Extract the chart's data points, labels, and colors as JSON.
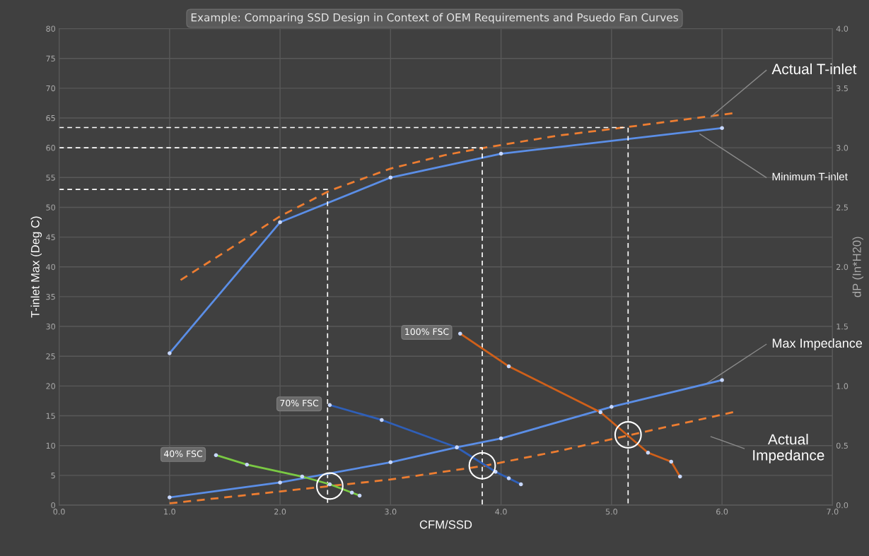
{
  "chart_data": {
    "type": "line",
    "title": "Example: Comparing SSD Design in Context of OEM Requirements and Psuedo Fan Curves",
    "xlabel": "CFM/SSD",
    "ylabel": "T-inlet Max (Deg C)",
    "y2label": "dP (In*H20)",
    "xlim": [
      0,
      7
    ],
    "xticks": [
      {
        "value": 0,
        "label": "0.0"
      },
      {
        "value": 1,
        "label": "1.0"
      },
      {
        "value": 2,
        "label": "2.0"
      },
      {
        "value": 3,
        "label": "3.0"
      },
      {
        "value": 4,
        "label": "4.0"
      },
      {
        "value": 5,
        "label": "5.0"
      },
      {
        "value": 6,
        "label": "6.0"
      },
      {
        "value": 7,
        "label": "7.0"
      }
    ],
    "ylim": [
      0,
      80
    ],
    "yticks": [
      0,
      5,
      10,
      15,
      20,
      25,
      30,
      35,
      40,
      45,
      50,
      55,
      60,
      65,
      70,
      75,
      80
    ],
    "y2lim": [
      0,
      4
    ],
    "y2ticks": [
      {
        "value": 0,
        "label": "0.0"
      },
      {
        "value": 0.5,
        "label": "0.5"
      },
      {
        "value": 1,
        "label": "1.0"
      },
      {
        "value": 1.5,
        "label": "1.5"
      },
      {
        "value": 2,
        "label": "2.0"
      },
      {
        "value": 2.5,
        "label": "2.5"
      },
      {
        "value": 3,
        "label": "3.0"
      },
      {
        "value": 3.5,
        "label": "3.5"
      },
      {
        "value": 4,
        "label": "4.0"
      }
    ],
    "grid": true,
    "series": [
      {
        "name": "Minimum T-inlet",
        "color": "#5b8ee6",
        "marker": "circle",
        "line_style": "solid",
        "x": [
          1,
          2,
          3,
          4,
          6
        ],
        "values": [
          25.5,
          47.5,
          55,
          59,
          63.3
        ]
      },
      {
        "name": "Actual T-inlet",
        "color": "#ed7d31",
        "line_style": "dashed",
        "x": [
          1.1,
          1.5,
          2.0,
          2.45,
          3.0,
          3.5,
          3.85,
          4.5,
          5.15,
          6.1
        ],
        "values": [
          37.8,
          42.5,
          48.5,
          52.8,
          56.5,
          58.8,
          60,
          62,
          63.5,
          65.8
        ]
      },
      {
        "name": "Max Impedance",
        "color": "#5b8ee6",
        "marker": "circle",
        "line_style": "solid",
        "axis": "y2",
        "x": [
          1,
          2,
          3,
          3.6,
          4,
          5,
          6
        ],
        "values": [
          0.065,
          0.19,
          0.36,
          0.485,
          0.56,
          0.825,
          1.05
        ]
      },
      {
        "name": "Actual Impedance",
        "color": "#ed7d31",
        "line_style": "dashed",
        "axis": "y2",
        "x": [
          1,
          2.45,
          3,
          3.85,
          4.5,
          5.15,
          6.1
        ],
        "values": [
          0.015,
          0.16,
          0.215,
          0.33,
          0.45,
          0.585,
          0.78
        ]
      },
      {
        "name": "40% FSC",
        "color": "#7ac943",
        "marker": "circle",
        "line_style": "solid",
        "axis": "y2",
        "x": [
          1.42,
          1.7,
          2.2,
          2.45,
          2.65,
          2.72
        ],
        "values": [
          0.42,
          0.34,
          0.24,
          0.175,
          0.105,
          0.08
        ]
      },
      {
        "name": "70% FSC",
        "color": "#2f5fb8",
        "marker": "circle",
        "line_style": "solid",
        "axis": "y2",
        "x": [
          2.45,
          2.92,
          3.6,
          3.95,
          4.07,
          4.18
        ],
        "values": [
          0.84,
          0.715,
          0.485,
          0.28,
          0.225,
          0.175
        ]
      },
      {
        "name": "100% FSC",
        "color": "#d0601a",
        "marker": "circle",
        "line_style": "solid",
        "axis": "y2",
        "x": [
          3.63,
          4.07,
          4.9,
          5.33,
          5.54,
          5.62
        ],
        "values": [
          1.44,
          1.165,
          0.78,
          0.44,
          0.365,
          0.24
        ]
      },
      {
        "type": "line",
        "color": "#ffffff",
        "line_style": "dashed",
        "x": [
          0,
          2.43,
          2.43
        ],
        "values": [
          53,
          53,
          0
        ]
      },
      {
        "type": "line",
        "color": "#ffffff",
        "line_style": "dashed",
        "x": [
          0,
          3.83,
          3.83
        ],
        "values": [
          60,
          60,
          0
        ]
      },
      {
        "type": "line",
        "color": "#ffffff",
        "line_style": "dashed",
        "x": [
          0,
          5.15,
          5.15
        ],
        "values": [
          63.4,
          63.4,
          0
        ]
      },
      {
        "type": "scatter",
        "color": "#ffffff",
        "marker": "circle",
        "axis": "y2",
        "x": [
          2.45,
          3.83,
          5.15
        ],
        "values": [
          0.16,
          0.33,
          0.59
        ]
      }
    ]
  }
}
